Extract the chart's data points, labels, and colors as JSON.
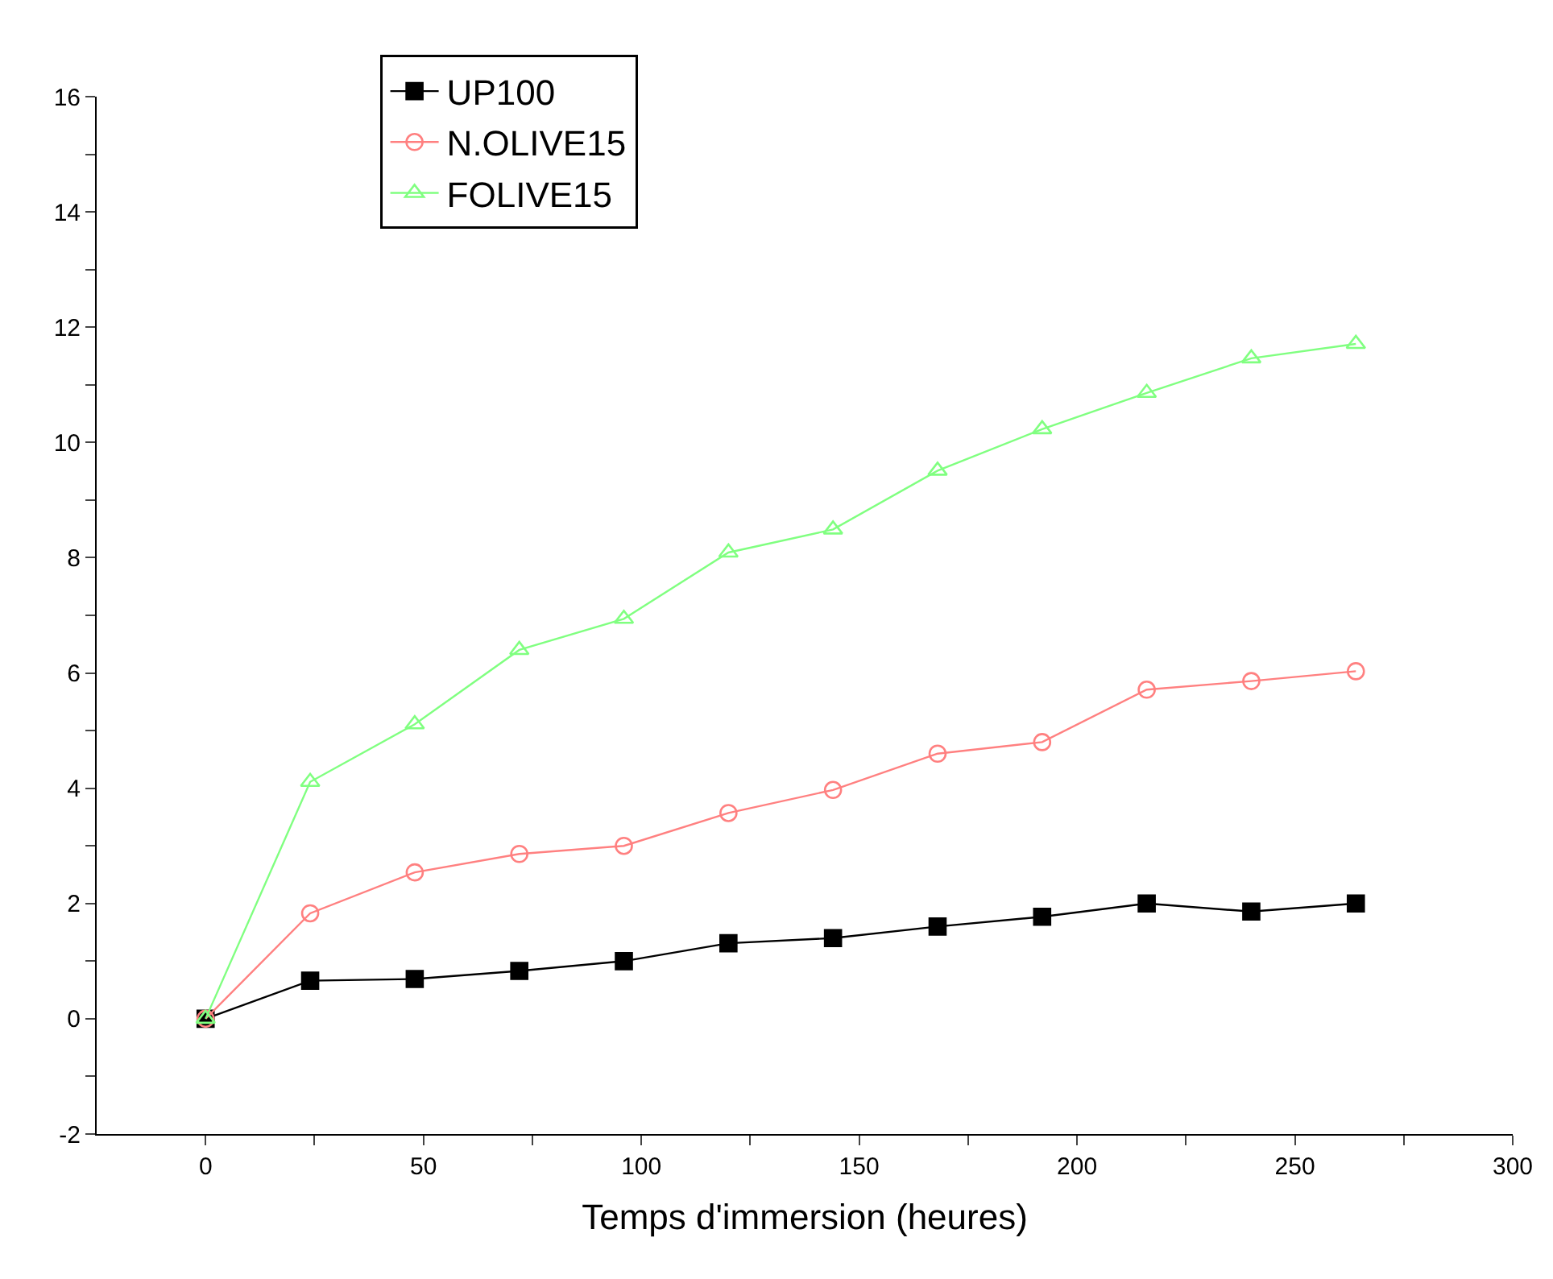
{
  "chart_data": {
    "type": "line",
    "xlabel": "Temps d'immersion (heures)",
    "x": [
      0,
      24,
      48,
      72,
      96,
      120,
      144,
      168,
      192,
      216,
      240,
      264
    ],
    "series": [
      {
        "name": "UP100",
        "color": "#000000",
        "marker": "square",
        "values": [
          0,
          0.66,
          0.69,
          0.83,
          1.0,
          1.31,
          1.4,
          1.6,
          1.77,
          2.0,
          1.86,
          2.0
        ]
      },
      {
        "name": "N.OLIVE15",
        "color": "#ff8080",
        "marker": "circle",
        "values": [
          0,
          1.83,
          2.54,
          2.86,
          3.0,
          3.57,
          3.97,
          4.6,
          4.8,
          5.71,
          5.86,
          6.03
        ]
      },
      {
        "name": "FOLIVE15",
        "color": "#80ff80",
        "marker": "triangle",
        "values": [
          0,
          4.11,
          5.11,
          6.4,
          6.94,
          8.09,
          8.49,
          9.51,
          10.23,
          10.86,
          11.46,
          11.71
        ]
      }
    ],
    "xlim": [
      -25,
      300
    ],
    "xticks": [
      0,
      {
        "value": 25,
        "label": null
      },
      50,
      {
        "value": 75,
        "label": null
      },
      100,
      {
        "value": 125,
        "label": null
      },
      150,
      {
        "value": 175,
        "label": null
      },
      200,
      {
        "value": 225,
        "label": null
      },
      250,
      {
        "value": 275,
        "label": null
      },
      300
    ],
    "ylim": [
      -2,
      16
    ],
    "yticks": [
      -2,
      {
        "value": -1,
        "label": null
      },
      0,
      {
        "value": 1,
        "label": null
      },
      2,
      {
        "value": 3,
        "label": null
      },
      4,
      {
        "value": 5,
        "label": null
      },
      6,
      {
        "value": 7,
        "label": null
      },
      8,
      {
        "value": 9,
        "label": null
      },
      10,
      {
        "value": 11,
        "label": null
      },
      12,
      {
        "value": 13,
        "label": null
      },
      14,
      {
        "value": 15,
        "label": null
      },
      16
    ],
    "legend": "top left",
    "line_style": "solid"
  }
}
